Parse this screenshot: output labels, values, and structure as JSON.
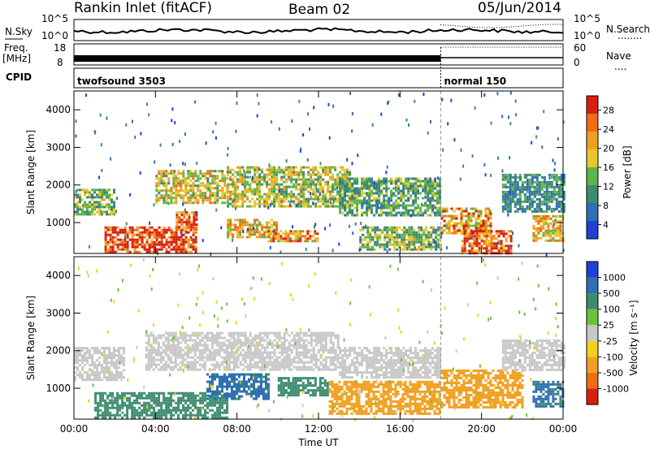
{
  "header": {
    "title": "Rankin Inlet (fitACF)",
    "beam": "Beam 02",
    "date": "05/Jun/2014"
  },
  "noise_panel": {
    "left_label": "N.Sky",
    "right_label": "N.Search",
    "right_legend_line": "........",
    "left_ticks": [
      "10^5",
      "10^0"
    ],
    "right_ticks": [
      "10^5",
      "10^0"
    ]
  },
  "freq_panel": {
    "left_label_1": "Freq.",
    "left_label_2": "[MHz]",
    "right_label": "Nave",
    "right_legend_line": "....",
    "left_ticks": [
      "18",
      "8"
    ],
    "right_ticks": [
      "60",
      "0"
    ]
  },
  "cpid_panel": {
    "label": "CPID",
    "segments": [
      {
        "name": "twofsound 3503",
        "start_hour": 0,
        "end_hour": 18
      },
      {
        "name": "normal 150",
        "start_hour": 18,
        "end_hour": 24
      }
    ]
  },
  "colors": {
    "power": [
      "#1f3fd6",
      "#2f6fb4",
      "#3c8c6e",
      "#5fb44a",
      "#e6c82a",
      "#f0a020",
      "#ef6b14",
      "#d81e10"
    ],
    "velocity": [
      "#1f3fd6",
      "#2f6fb4",
      "#3c8c6e",
      "#6dc23c",
      "#c8c8c8",
      "#f0d020",
      "#f0a020",
      "#ef6b14",
      "#d81e10"
    ]
  },
  "chart_data": [
    {
      "type": "heatmap",
      "title": "Power",
      "xlabel": "",
      "ylabel": "Slant Range [km]",
      "x_ticks": [
        "00:00",
        "04:00",
        "08:00",
        "12:00",
        "16:00",
        "20:00",
        "00:00"
      ],
      "xlim_hours": [
        0,
        24
      ],
      "y_ticks": [
        "1000",
        "2000",
        "3000",
        "4000"
      ],
      "ylim_km": [
        180,
        4500
      ],
      "colorbar": {
        "label": "Power [dB]",
        "ticks": [
          "28",
          "24",
          "20",
          "16",
          "12",
          "8",
          "4"
        ],
        "range": [
          0,
          30
        ]
      },
      "regions": [
        {
          "t": [
            1.5,
            6.0
          ],
          "r": [
            200,
            900
          ],
          "value": 30
        },
        {
          "t": [
            0.0,
            2.0
          ],
          "r": [
            1200,
            1900
          ],
          "value": 14
        },
        {
          "t": [
            4.0,
            7.5
          ],
          "r": [
            1500,
            2400
          ],
          "value": 18
        },
        {
          "t": [
            5.0,
            6.0
          ],
          "r": [
            800,
            1300
          ],
          "value": 26
        },
        {
          "t": [
            7.5,
            10.0
          ],
          "r": [
            600,
            1100
          ],
          "value": 20
        },
        {
          "t": [
            7.5,
            13.5
          ],
          "r": [
            1400,
            2500
          ],
          "value": 16
        },
        {
          "t": [
            9.5,
            12.0
          ],
          "r": [
            500,
            800
          ],
          "value": 24
        },
        {
          "t": [
            13.0,
            18.0
          ],
          "r": [
            1200,
            2200
          ],
          "value": 12
        },
        {
          "t": [
            14.0,
            18.0
          ],
          "r": [
            300,
            900
          ],
          "value": 14
        },
        {
          "t": [
            18.0,
            20.5
          ],
          "r": [
            700,
            1400
          ],
          "value": 22
        },
        {
          "t": [
            19.0,
            21.5
          ],
          "r": [
            200,
            800
          ],
          "value": 26
        },
        {
          "t": [
            21.0,
            24.0
          ],
          "r": [
            1300,
            2300
          ],
          "value": 10
        },
        {
          "t": [
            22.5,
            24.0
          ],
          "r": [
            500,
            1200
          ],
          "value": 20
        }
      ]
    },
    {
      "type": "heatmap",
      "title": "Velocity",
      "xlabel": "Time UT",
      "ylabel": "Slant Range [km]",
      "x_ticks": [
        "00:00",
        "04:00",
        "08:00",
        "12:00",
        "16:00",
        "20:00",
        "00:00"
      ],
      "xlim_hours": [
        0,
        24
      ],
      "y_ticks": [
        "1000",
        "2000",
        "3000",
        "4000"
      ],
      "ylim_km": [
        180,
        4500
      ],
      "colorbar": {
        "label": "Velocity [m s⁻¹]",
        "ticks": [
          "1000",
          "500",
          "100",
          "25",
          "-25",
          "-100",
          "-500",
          "-1000"
        ],
        "range": [
          -1000,
          1000
        ]
      },
      "regions": [
        {
          "t": [
            0.0,
            2.5
          ],
          "r": [
            1200,
            2100
          ],
          "value": 0
        },
        {
          "t": [
            1.0,
            7.5
          ],
          "r": [
            200,
            900
          ],
          "value": 150
        },
        {
          "t": [
            3.5,
            8.0
          ],
          "r": [
            1500,
            2500
          ],
          "value": 0
        },
        {
          "t": [
            6.5,
            9.5
          ],
          "r": [
            700,
            1400
          ],
          "value": 300
        },
        {
          "t": [
            8.0,
            13.0
          ],
          "r": [
            1500,
            2500
          ],
          "value": 0
        },
        {
          "t": [
            10.0,
            12.5
          ],
          "r": [
            800,
            1300
          ],
          "value": 150
        },
        {
          "t": [
            12.5,
            18.0
          ],
          "r": [
            300,
            1200
          ],
          "value": -200
        },
        {
          "t": [
            13.0,
            18.0
          ],
          "r": [
            1300,
            2100
          ],
          "value": 0
        },
        {
          "t": [
            18.0,
            22.0
          ],
          "r": [
            500,
            1500
          ],
          "value": -300
        },
        {
          "t": [
            21.0,
            24.0
          ],
          "r": [
            1500,
            2300
          ],
          "value": 0
        },
        {
          "t": [
            22.5,
            24.0
          ],
          "r": [
            500,
            1200
          ],
          "value": 300
        }
      ]
    }
  ]
}
